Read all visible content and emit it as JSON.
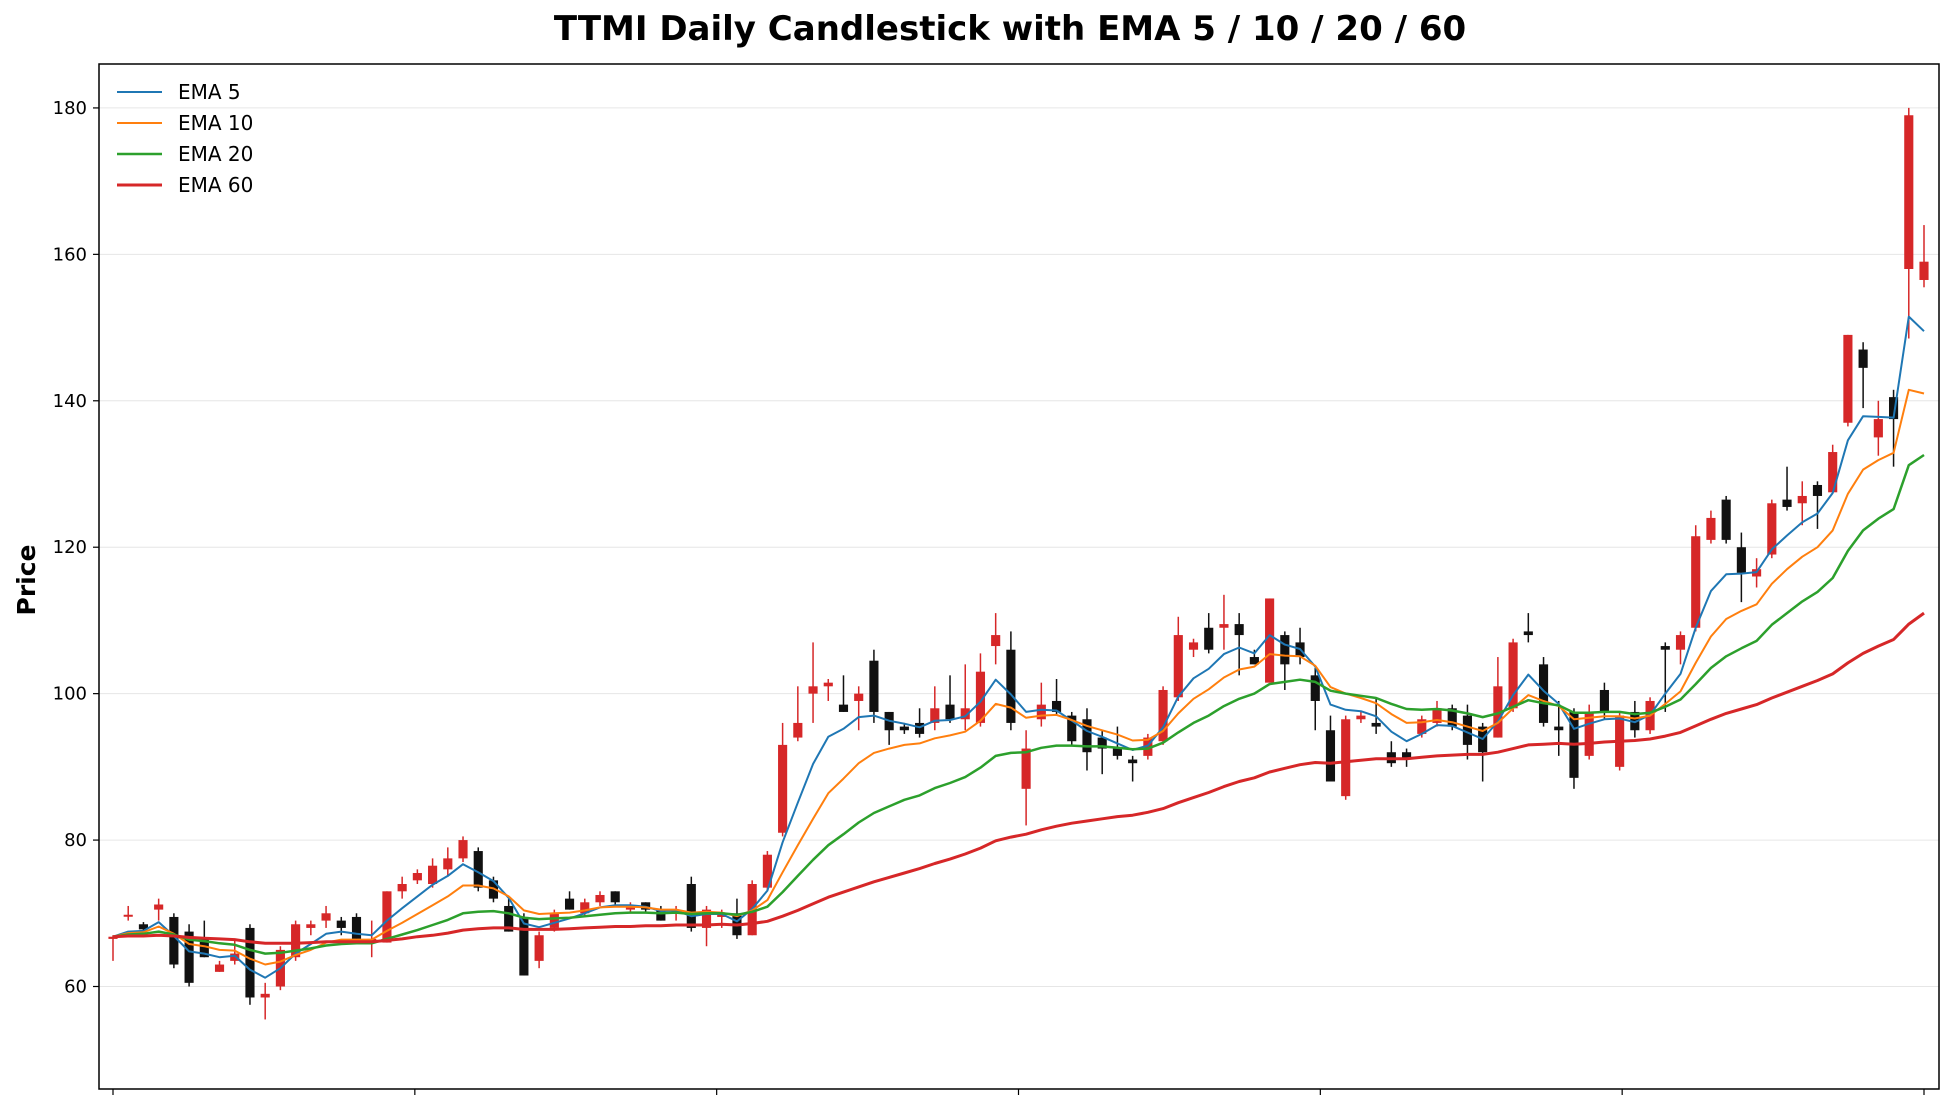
{
  "chart_data": {
    "type": "candlestick",
    "title": "TTMI Daily Candlestick with EMA 5 / 10 / 20 / 60",
    "xlabel": "",
    "ylabel": "Price",
    "ylim": [
      46,
      186
    ],
    "yticks": [
      60,
      80,
      100,
      120,
      140,
      160,
      180
    ],
    "grid": "horizontal",
    "legend_position": "top-left",
    "colors": {
      "up": "#d62728",
      "down": "#111111",
      "ema5": "#1f77b4",
      "ema10": "#ff7f0e",
      "ema20": "#2ca02c",
      "ema60": "#d62728"
    },
    "series": [
      {
        "name": "EMA 5",
        "key": "ema5"
      },
      {
        "name": "EMA 10",
        "key": "ema10"
      },
      {
        "name": "EMA 20",
        "key": "ema20"
      },
      {
        "name": "EMA 60",
        "key": "ema60"
      }
    ],
    "candles": [
      [
        66.5,
        66.8,
        63.5,
        67.0
      ],
      [
        69.8,
        69.8,
        69.0,
        71.0
      ],
      [
        68.5,
        67.8,
        67.5,
        68.8
      ],
      [
        70.5,
        71.2,
        69.0,
        72.0
      ],
      [
        69.5,
        63.0,
        62.5,
        70.0
      ],
      [
        67.5,
        60.5,
        60.0,
        68.5
      ],
      [
        66.5,
        64.0,
        64.0,
        69.0
      ],
      [
        62.0,
        63.0,
        62.0,
        63.5
      ],
      [
        63.5,
        64.5,
        63.0,
        66.5
      ],
      [
        68.0,
        58.5,
        57.5,
        68.5
      ],
      [
        58.5,
        59.0,
        55.5,
        60.5
      ],
      [
        60.0,
        65.0,
        59.5,
        65.5
      ],
      [
        64.0,
        68.5,
        63.5,
        69.0
      ],
      [
        68.0,
        68.5,
        67.0,
        69.0
      ],
      [
        69.0,
        70.0,
        68.0,
        71.0
      ],
      [
        69.0,
        68.0,
        67.0,
        69.5
      ],
      [
        69.5,
        66.5,
        66.0,
        70.0
      ],
      [
        66.5,
        66.5,
        64.0,
        69.0
      ],
      [
        66.0,
        73.0,
        66.0,
        73.0
      ],
      [
        73.0,
        74.0,
        72.0,
        75.0
      ],
      [
        74.5,
        75.5,
        74.0,
        76.0
      ],
      [
        74.0,
        76.5,
        73.5,
        77.5
      ],
      [
        76.0,
        77.5,
        75.0,
        79.0
      ],
      [
        77.5,
        80.0,
        77.0,
        80.5
      ],
      [
        78.5,
        73.5,
        73.0,
        79.0
      ],
      [
        74.5,
        72.0,
        71.5,
        75.0
      ],
      [
        71.0,
        67.5,
        67.5,
        72.0
      ],
      [
        69.5,
        61.5,
        61.5,
        70.0
      ],
      [
        63.5,
        67.0,
        62.5,
        67.5
      ],
      [
        68.0,
        70.0,
        67.5,
        70.5
      ],
      [
        72.0,
        70.5,
        70.5,
        73.0
      ],
      [
        70.0,
        71.5,
        69.5,
        72.0
      ],
      [
        71.5,
        72.5,
        71.0,
        73.0
      ],
      [
        73.0,
        71.5,
        71.0,
        73.0
      ],
      [
        70.5,
        71.0,
        70.0,
        71.5
      ],
      [
        71.5,
        70.5,
        70.0,
        71.5
      ],
      [
        70.5,
        69.0,
        69.0,
        71.0
      ],
      [
        70.0,
        70.5,
        69.0,
        71.0
      ],
      [
        74.0,
        68.0,
        67.5,
        75.0
      ],
      [
        68.0,
        70.5,
        65.5,
        71.0
      ],
      [
        69.5,
        70.0,
        68.0,
        70.5
      ],
      [
        70.0,
        67.0,
        66.5,
        72.0
      ],
      [
        67.0,
        74.0,
        67.0,
        74.5
      ],
      [
        73.5,
        78.0,
        73.0,
        78.5
      ],
      [
        81.0,
        93.0,
        80.5,
        96.0
      ],
      [
        94.0,
        96.0,
        93.5,
        101.0
      ],
      [
        100.0,
        101.0,
        96.0,
        107.0
      ],
      [
        101.0,
        101.5,
        99.0,
        102.0
      ],
      [
        98.5,
        97.5,
        97.5,
        102.5
      ],
      [
        99.0,
        100.0,
        95.0,
        101.0
      ],
      [
        104.5,
        97.5,
        96.0,
        106.0
      ],
      [
        97.5,
        95.0,
        93.0,
        97.5
      ],
      [
        95.5,
        95.0,
        94.5,
        96.0
      ],
      [
        96.0,
        94.5,
        94.0,
        98.0
      ],
      [
        96.0,
        98.0,
        95.0,
        101.0
      ],
      [
        98.5,
        96.5,
        96.0,
        102.5
      ],
      [
        96.5,
        98.0,
        95.0,
        104.0
      ],
      [
        96.0,
        103.0,
        95.5,
        105.5
      ],
      [
        106.5,
        108.0,
        104.0,
        111.0
      ],
      [
        106.0,
        96.0,
        95.0,
        108.5
      ],
      [
        87.0,
        92.5,
        82.0,
        95.0
      ],
      [
        96.5,
        98.5,
        95.5,
        101.5
      ],
      [
        99.0,
        97.5,
        97.0,
        102.0
      ],
      [
        97.0,
        93.5,
        93.0,
        97.5
      ],
      [
        96.5,
        92.0,
        89.5,
        98.0
      ],
      [
        94.0,
        92.5,
        89.0,
        95.0
      ],
      [
        92.5,
        91.5,
        91.0,
        95.5
      ],
      [
        91.0,
        90.5,
        88.0,
        91.5
      ],
      [
        91.5,
        94.0,
        91.0,
        94.5
      ],
      [
        93.5,
        100.5,
        93.0,
        101.0
      ],
      [
        99.5,
        108.0,
        99.0,
        110.5
      ],
      [
        106.0,
        107.0,
        105.0,
        107.5
      ],
      [
        109.0,
        106.0,
        105.5,
        111.0
      ],
      [
        109.0,
        109.5,
        106.0,
        113.5
      ],
      [
        109.5,
        108.0,
        102.5,
        111.0
      ],
      [
        105.0,
        104.0,
        104.0,
        106.0
      ],
      [
        101.5,
        113.0,
        101.5,
        113.0
      ],
      [
        108.0,
        104.0,
        100.5,
        108.5
      ],
      [
        107.0,
        105.0,
        104.0,
        109.0
      ],
      [
        102.5,
        99.0,
        95.0,
        103.5
      ],
      [
        95.0,
        88.0,
        88.0,
        97.0
      ],
      [
        86.0,
        96.5,
        85.5,
        97.0
      ],
      [
        96.5,
        97.0,
        96.0,
        97.5
      ],
      [
        96.0,
        95.5,
        94.5,
        99.5
      ],
      [
        92.0,
        90.5,
        90.0,
        93.5
      ],
      [
        92.0,
        91.0,
        90.0,
        92.5
      ],
      [
        94.5,
        96.5,
        94.0,
        97.0
      ],
      [
        96.0,
        98.0,
        95.5,
        99.0
      ],
      [
        98.0,
        95.5,
        95.0,
        98.5
      ],
      [
        97.0,
        93.0,
        91.0,
        98.5
      ],
      [
        95.5,
        92.0,
        88.0,
        96.0
      ],
      [
        94.0,
        101.0,
        94.0,
        105.0
      ],
      [
        98.0,
        107.0,
        97.5,
        107.5
      ],
      [
        108.5,
        108.0,
        107.0,
        111.0
      ],
      [
        104.0,
        96.0,
        95.5,
        105.0
      ],
      [
        95.5,
        95.0,
        91.5,
        99.0
      ],
      [
        97.5,
        88.5,
        87.0,
        98.0
      ],
      [
        91.5,
        97.5,
        91.0,
        98.5
      ],
      [
        100.5,
        97.5,
        96.5,
        101.5
      ],
      [
        90.0,
        97.0,
        89.5,
        97.5
      ],
      [
        97.5,
        95.0,
        94.0,
        99.0
      ],
      [
        95.0,
        99.0,
        94.5,
        99.5
      ],
      [
        106.5,
        106.0,
        97.5,
        107.0
      ],
      [
        106.0,
        108.0,
        104.0,
        108.5
      ],
      [
        109.0,
        121.5,
        108.5,
        123.0
      ],
      [
        121.0,
        124.0,
        120.5,
        125.0
      ],
      [
        126.5,
        121.0,
        120.5,
        127.0
      ],
      [
        120.0,
        116.5,
        112.5,
        122.0
      ],
      [
        116.0,
        117.0,
        114.5,
        118.5
      ],
      [
        119.0,
        126.0,
        118.5,
        126.5
      ],
      [
        126.5,
        125.5,
        125.0,
        131.0
      ],
      [
        126.0,
        127.0,
        123.0,
        129.0
      ],
      [
        128.5,
        127.0,
        122.5,
        129.0
      ],
      [
        127.5,
        133.0,
        127.5,
        134.0
      ],
      [
        137.0,
        149.0,
        136.5,
        149.0
      ],
      [
        147.0,
        144.5,
        139.0,
        148.0
      ],
      [
        135.0,
        137.5,
        132.5,
        140.0
      ],
      [
        140.5,
        137.5,
        131.0,
        141.5
      ],
      [
        158.0,
        179.0,
        148.5,
        180.0
      ],
      [
        156.5,
        159.0,
        155.5,
        164.0
      ]
    ],
    "ema5": [
      66.8,
      67.5,
      67.6,
      68.8,
      66.9,
      64.8,
      64.5,
      64.0,
      64.2,
      62.3,
      61.2,
      62.5,
      64.5,
      65.8,
      67.2,
      67.5,
      67.2,
      67.0,
      69.0,
      70.7,
      72.3,
      73.9,
      75.1,
      76.7,
      75.6,
      74.4,
      72.1,
      68.6,
      68.1,
      68.7,
      69.3,
      70.0,
      70.8,
      71.1,
      71.1,
      70.9,
      70.3,
      70.4,
      69.6,
      69.9,
      69.9,
      68.9,
      70.6,
      73.1,
      79.7,
      85.1,
      90.4,
      94.1,
      95.2,
      96.8,
      97.0,
      96.3,
      95.9,
      95.4,
      96.3,
      96.4,
      96.9,
      98.9,
      101.9,
      99.9,
      97.5,
      97.8,
      97.7,
      96.3,
      94.9,
      94.1,
      93.2,
      92.3,
      92.9,
      95.4,
      99.6,
      102.1,
      103.4,
      105.4,
      106.3,
      105.5,
      108.0,
      106.7,
      106.1,
      103.7,
      98.5,
      97.8,
      97.6,
      96.9,
      94.8,
      93.5,
      94.5,
      95.7,
      95.6,
      94.7,
      93.8,
      96.2,
      99.8,
      102.6,
      100.4,
      98.6,
      95.2,
      95.9,
      96.5,
      96.6,
      96.1,
      97.1,
      100.0,
      102.7,
      109.0,
      114.0,
      116.3,
      116.4,
      116.6,
      119.7,
      121.6,
      123.4,
      124.6,
      127.4,
      134.6,
      137.9,
      137.8,
      137.7,
      151.5,
      149.5
    ],
    "ema10": [
      66.8,
      67.3,
      67.4,
      68.2,
      67.2,
      65.8,
      65.5,
      65.0,
      64.9,
      63.8,
      63.0,
      63.4,
      64.3,
      65.0,
      66.0,
      66.4,
      66.4,
      66.4,
      67.6,
      68.7,
      69.9,
      71.1,
      72.3,
      73.8,
      73.8,
      73.4,
      72.3,
      70.4,
      69.9,
      70.0,
      70.1,
      70.4,
      70.8,
      70.9,
      70.9,
      70.8,
      70.5,
      70.5,
      70.1,
      70.2,
      70.1,
      69.6,
      70.4,
      71.8,
      75.6,
      79.3,
      82.9,
      86.4,
      88.4,
      90.5,
      91.9,
      92.5,
      93.0,
      93.2,
      93.9,
      94.3,
      94.8,
      96.3,
      98.6,
      98.1,
      96.7,
      97.0,
      97.1,
      96.4,
      95.6,
      95.0,
      94.4,
      93.6,
      93.7,
      94.9,
      97.3,
      99.3,
      100.6,
      102.2,
      103.3,
      103.7,
      105.4,
      105.2,
      105.1,
      103.8,
      100.9,
      100.0,
      99.4,
      98.7,
      97.2,
      96.0,
      96.1,
      96.4,
      96.1,
      95.5,
      94.9,
      96.0,
      98.0,
      99.8,
      99.0,
      98.3,
      96.5,
      96.7,
      96.9,
      96.9,
      96.6,
      97.0,
      98.6,
      100.3,
      104.2,
      107.8,
      110.2,
      111.3,
      112.2,
      115.0,
      117.0,
      118.7,
      120.0,
      122.3,
      127.3,
      130.6,
      131.9,
      132.9,
      141.5,
      141.0
    ],
    "ema20": [
      66.8,
      67.1,
      67.2,
      67.5,
      67.1,
      66.4,
      66.2,
      65.9,
      65.7,
      65.0,
      64.5,
      64.6,
      64.9,
      65.2,
      65.6,
      65.8,
      65.9,
      65.9,
      66.5,
      67.1,
      67.7,
      68.4,
      69.1,
      70.0,
      70.2,
      70.3,
      70.0,
      69.4,
      69.2,
      69.3,
      69.4,
      69.6,
      69.8,
      70.0,
      70.1,
      70.1,
      70.0,
      70.1,
      69.9,
      70.0,
      70.0,
      69.8,
      70.2,
      70.9,
      72.9,
      75.1,
      77.3,
      79.3,
      80.8,
      82.4,
      83.7,
      84.6,
      85.5,
      86.1,
      87.1,
      87.8,
      88.6,
      89.9,
      91.5,
      91.9,
      92.0,
      92.6,
      92.9,
      92.9,
      92.8,
      92.8,
      92.6,
      92.4,
      92.5,
      93.3,
      94.7,
      96.0,
      97.0,
      98.3,
      99.3,
      100.0,
      101.3,
      101.6,
      101.9,
      101.6,
      100.4,
      100.0,
      99.7,
      99.4,
      98.6,
      97.9,
      97.8,
      97.9,
      97.7,
      97.3,
      96.8,
      97.3,
      98.2,
      99.1,
      98.7,
      98.4,
      97.4,
      97.4,
      97.5,
      97.5,
      97.2,
      97.4,
      98.2,
      99.2,
      101.3,
      103.5,
      105.1,
      106.2,
      107.2,
      109.4,
      111.0,
      112.6,
      113.9,
      115.8,
      119.5,
      122.3,
      123.9,
      125.2,
      131.2,
      132.6
    ],
    "ema60": [
      66.8,
      66.9,
      66.9,
      67.0,
      66.9,
      66.7,
      66.6,
      66.5,
      66.4,
      66.1,
      65.9,
      65.9,
      65.9,
      66.0,
      66.1,
      66.1,
      66.1,
      66.1,
      66.3,
      66.5,
      66.8,
      67.0,
      67.3,
      67.7,
      67.9,
      68.0,
      68.0,
      67.8,
      67.8,
      67.8,
      67.9,
      68.0,
      68.1,
      68.2,
      68.2,
      68.3,
      68.3,
      68.4,
      68.4,
      68.4,
      68.5,
      68.4,
      68.6,
      68.9,
      69.6,
      70.4,
      71.3,
      72.2,
      72.9,
      73.6,
      74.3,
      74.9,
      75.5,
      76.1,
      76.8,
      77.4,
      78.1,
      78.9,
      79.9,
      80.4,
      80.8,
      81.4,
      81.9,
      82.3,
      82.6,
      82.9,
      83.2,
      83.4,
      83.8,
      84.3,
      85.1,
      85.8,
      86.5,
      87.3,
      88.0,
      88.5,
      89.3,
      89.8,
      90.3,
      90.6,
      90.5,
      90.7,
      90.9,
      91.1,
      91.1,
      91.1,
      91.3,
      91.5,
      91.6,
      91.7,
      91.7,
      92.0,
      92.5,
      93.0,
      93.1,
      93.2,
      93.1,
      93.2,
      93.4,
      93.5,
      93.6,
      93.8,
      94.2,
      94.7,
      95.6,
      96.5,
      97.3,
      97.9,
      98.5,
      99.4,
      100.2,
      101.0,
      101.8,
      102.7,
      104.2,
      105.5,
      106.5,
      107.4,
      109.5,
      111.0
    ]
  }
}
